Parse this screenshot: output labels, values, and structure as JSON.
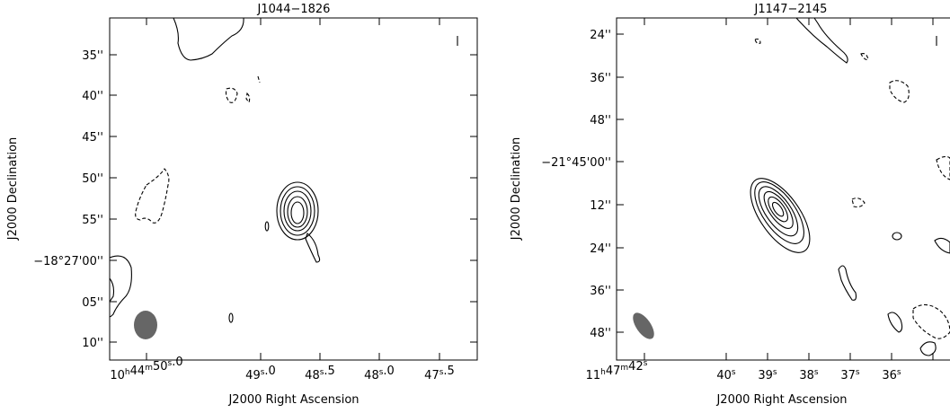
{
  "panels": [
    {
      "title": "J1044−1826",
      "xlabel": "J2000 Right Ascension",
      "ylabel": "J2000 Declination",
      "x_ticks": [
        "10h44m50s.0",
        "49s.0",
        "48s.5",
        "48s.0",
        "47s.5"
      ],
      "y_ticks": [
        "35''",
        "40''",
        "45''",
        "50''",
        "55''",
        "−18°27'00''",
        "05''",
        "10''"
      ]
    },
    {
      "title": "J1147−2145",
      "xlabel": "J2000 Right Ascension",
      "ylabel": "J2000 Declination",
      "x_ticks": [
        "11h47m42s",
        "40s",
        "39s",
        "38s",
        "37s",
        "36s"
      ],
      "y_ticks": [
        "24''",
        "36''",
        "48''",
        "−21°45'00''",
        "12''",
        "24''",
        "36''",
        "48''"
      ]
    }
  ],
  "colors": {
    "contour": "#000000",
    "beam": "#666666",
    "background": "#ffffff"
  }
}
